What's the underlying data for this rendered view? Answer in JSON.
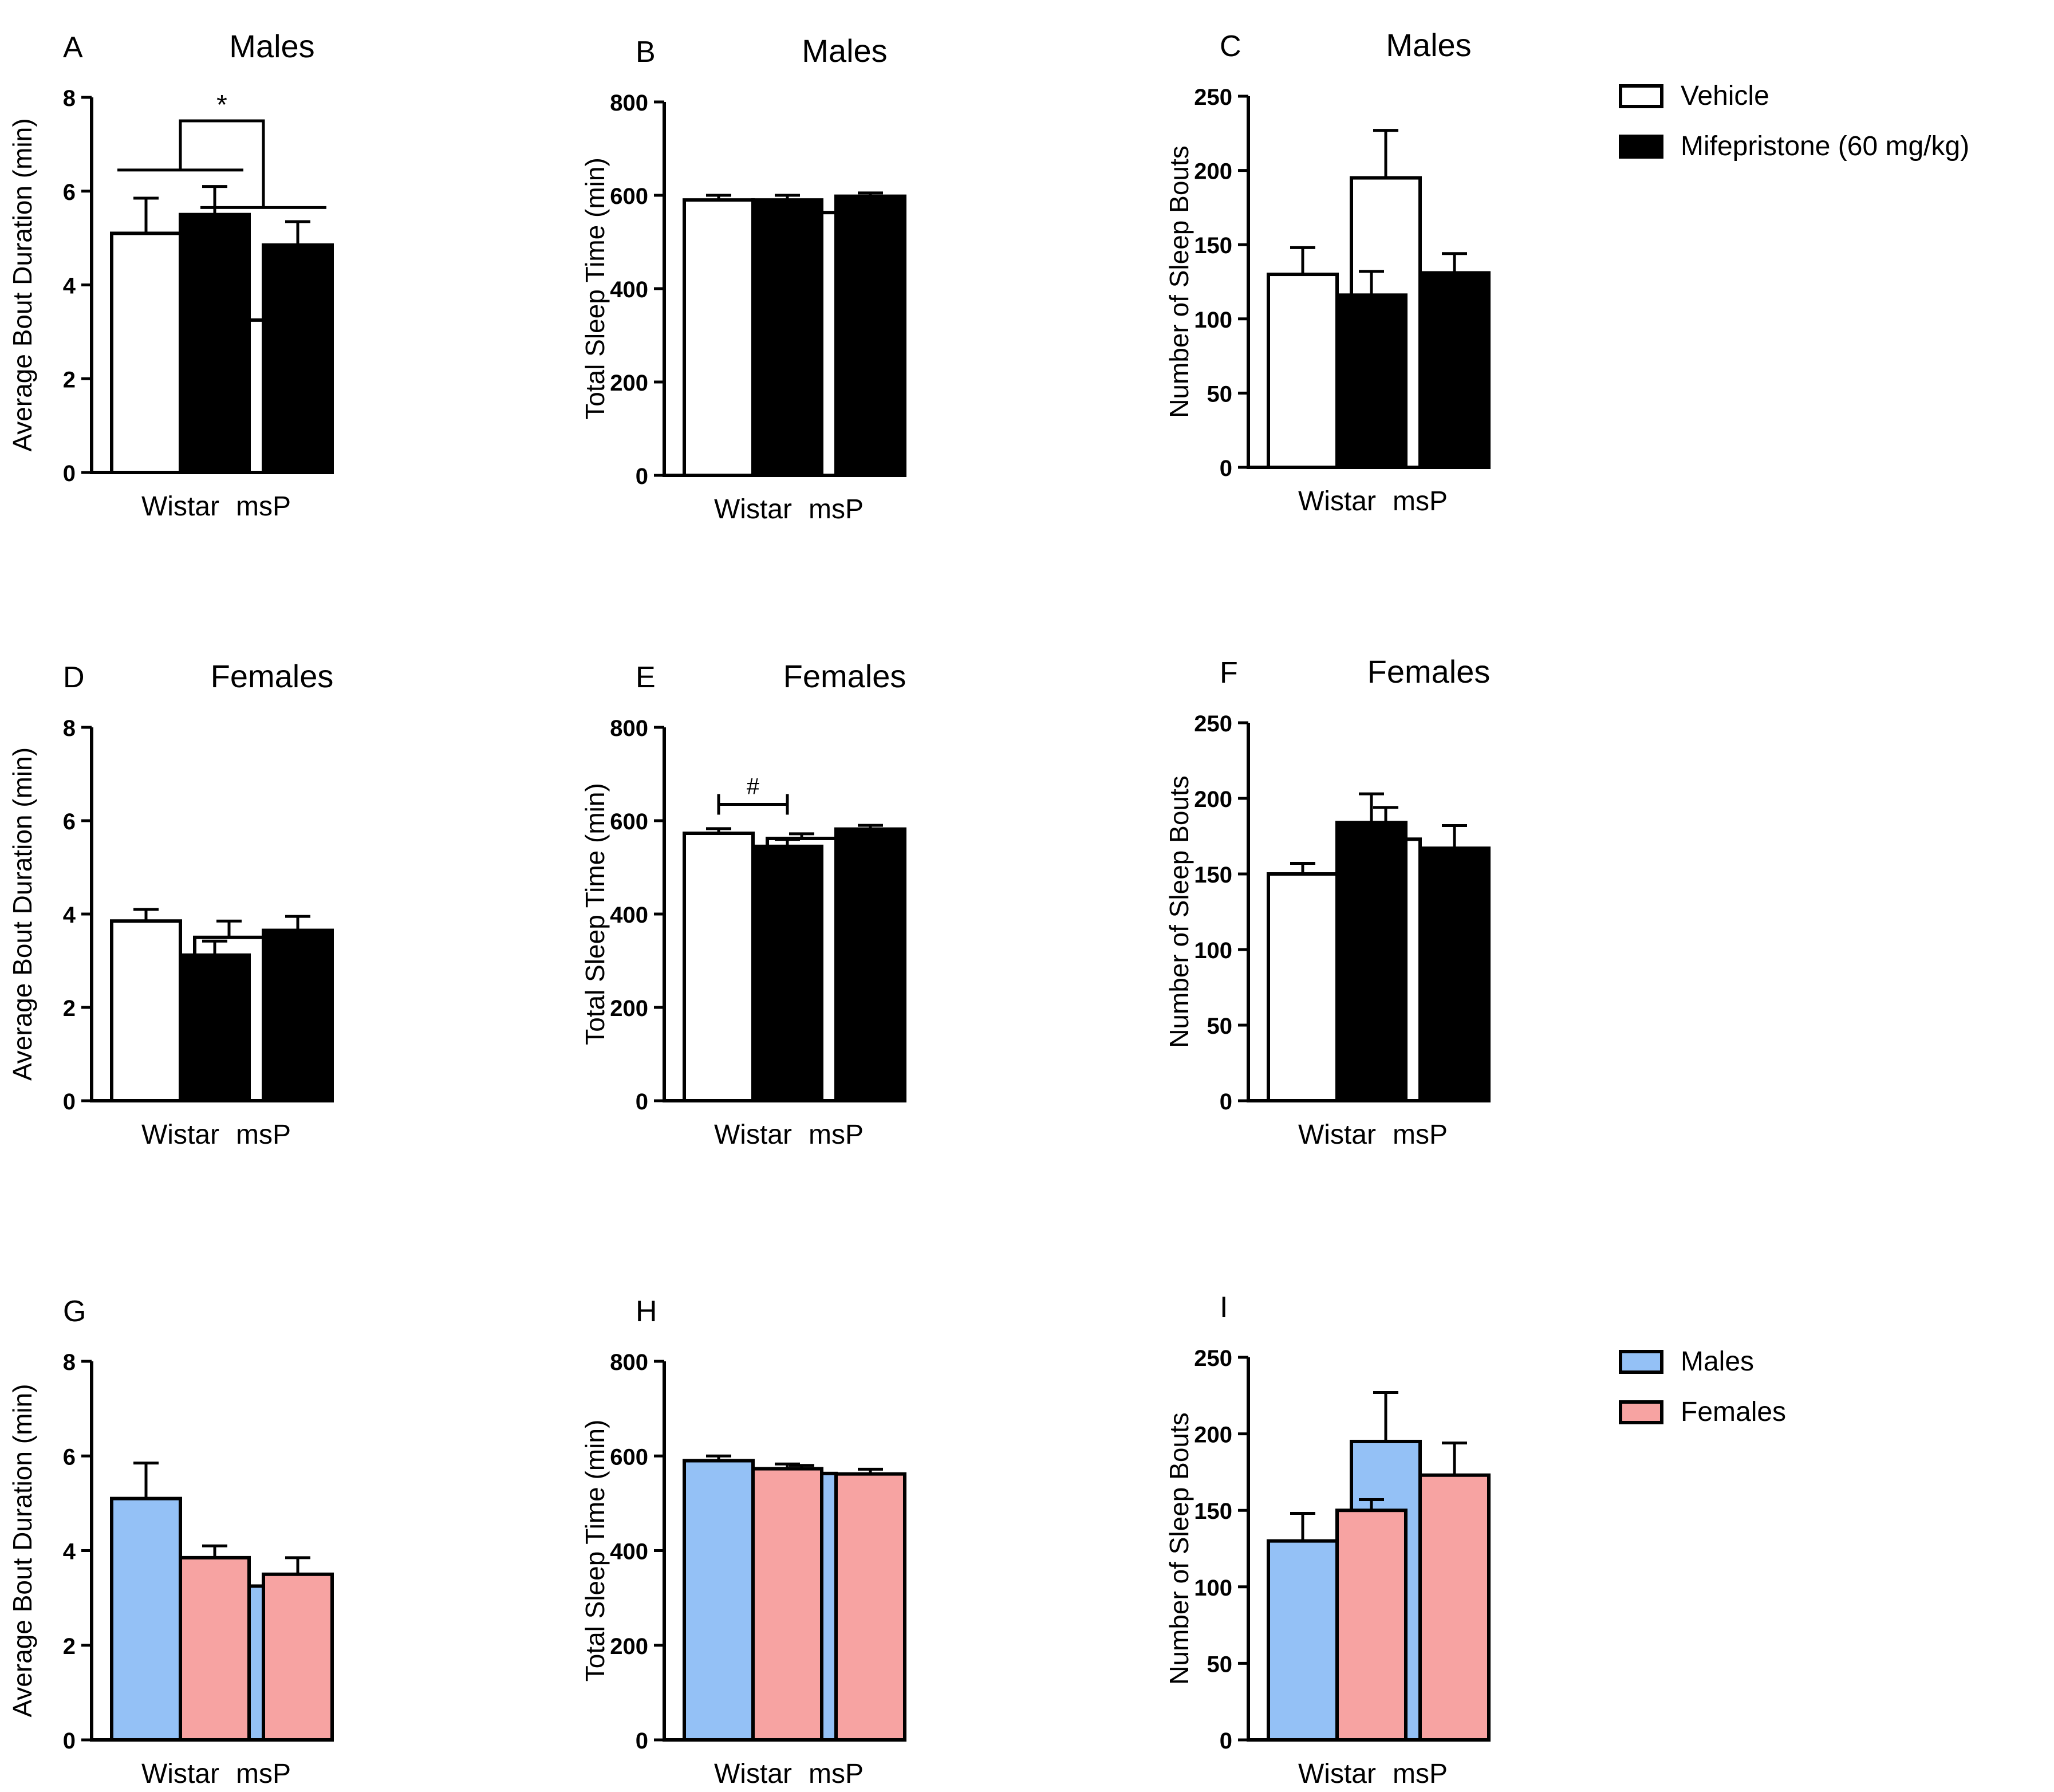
{
  "colors": {
    "vehicle": "#ffffff",
    "mifepristone": "#000000",
    "males": "#94c1f6",
    "females": "#f7a3a2",
    "stroke": "#000000"
  },
  "legends": [
    {
      "items": [
        {
          "label": "Vehicle",
          "color": "#ffffff"
        },
        {
          "label": "Mifepristone (60 mg/kg)",
          "color": "#000000"
        }
      ]
    },
    {
      "items": [
        {
          "label": "Males",
          "color": "#94c1f6"
        },
        {
          "label": "Females",
          "color": "#f7a3a2"
        }
      ]
    }
  ],
  "chart_data": [
    {
      "letter": "A",
      "title": "Males",
      "type": "bar",
      "ylabel": "Average Bout Duration (min)",
      "ylim": [
        0,
        8
      ],
      "yticks": [
        0,
        2,
        4,
        6,
        8
      ],
      "categories": [
        "Wistar",
        "msP"
      ],
      "series": [
        {
          "name": "Vehicle",
          "color": "#ffffff",
          "values": [
            5.1,
            3.25
          ],
          "errors": [
            0.75,
            0.45
          ]
        },
        {
          "name": "Mifepristone (60 mg/kg)",
          "color": "#000000",
          "values": [
            5.5,
            4.85
          ],
          "errors": [
            0.6,
            0.5
          ]
        }
      ],
      "annotations": [
        {
          "type": "group-comparison",
          "label": "*",
          "between": [
            "Wistar",
            "msP"
          ]
        }
      ]
    },
    {
      "letter": "B",
      "title": "Males",
      "type": "bar",
      "ylabel": "Total Sleep Time (min)",
      "ylim": [
        0,
        800
      ],
      "yticks": [
        0,
        200,
        400,
        600,
        800
      ],
      "categories": [
        "Wistar",
        "msP"
      ],
      "series": [
        {
          "name": "Vehicle",
          "color": "#ffffff",
          "values": [
            590,
            563
          ],
          "errors": [
            10,
            17
          ]
        },
        {
          "name": "Mifepristone (60 mg/kg)",
          "color": "#000000",
          "values": [
            590,
            598
          ],
          "errors": [
            10,
            7
          ]
        }
      ]
    },
    {
      "letter": "C",
      "title": "Males",
      "type": "bar",
      "ylabel": "Number of Sleep Bouts",
      "ylim": [
        0,
        250
      ],
      "yticks": [
        0,
        50,
        100,
        150,
        200,
        250
      ],
      "categories": [
        "Wistar",
        "msP"
      ],
      "series": [
        {
          "name": "Vehicle",
          "color": "#ffffff",
          "values": [
            130,
            195
          ],
          "errors": [
            18,
            32
          ]
        },
        {
          "name": "Mifepristone (60 mg/kg)",
          "color": "#000000",
          "values": [
            116,
            131
          ],
          "errors": [
            16,
            13
          ]
        }
      ]
    },
    {
      "letter": "D",
      "title": "Females",
      "type": "bar",
      "ylabel": "Average Bout Duration (min)",
      "ylim": [
        0,
        8
      ],
      "yticks": [
        0,
        2,
        4,
        6,
        8
      ],
      "categories": [
        "Wistar",
        "msP"
      ],
      "series": [
        {
          "name": "Vehicle",
          "color": "#ffffff",
          "values": [
            3.85,
            3.5
          ],
          "errors": [
            0.25,
            0.35
          ]
        },
        {
          "name": "Mifepristone (60 mg/kg)",
          "color": "#000000",
          "values": [
            3.12,
            3.65
          ],
          "errors": [
            0.3,
            0.3
          ]
        }
      ]
    },
    {
      "letter": "E",
      "title": "Females",
      "type": "bar",
      "ylabel": "Total Sleep Time (min)",
      "ylim": [
        0,
        800
      ],
      "yticks": [
        0,
        200,
        400,
        600,
        800
      ],
      "categories": [
        "Wistar",
        "msP"
      ],
      "series": [
        {
          "name": "Vehicle",
          "color": "#ffffff",
          "values": [
            573,
            562
          ],
          "errors": [
            10,
            10
          ]
        },
        {
          "name": "Mifepristone (60 mg/kg)",
          "color": "#000000",
          "values": [
            545,
            582
          ],
          "errors": [
            15,
            8
          ]
        }
      ],
      "annotations": [
        {
          "type": "within-group",
          "label": "#",
          "group": "Wistar"
        }
      ]
    },
    {
      "letter": "F",
      "title": "Females",
      "type": "bar",
      "ylabel": "Number of Sleep Bouts",
      "ylim": [
        0,
        250
      ],
      "yticks": [
        0,
        50,
        100,
        150,
        200,
        250
      ],
      "categories": [
        "Wistar",
        "msP"
      ],
      "series": [
        {
          "name": "Vehicle",
          "color": "#ffffff",
          "values": [
            150,
            173
          ],
          "errors": [
            7,
            21
          ]
        },
        {
          "name": "Mifepristone (60 mg/kg)",
          "color": "#000000",
          "values": [
            184,
            167
          ],
          "errors": [
            19,
            15
          ]
        }
      ]
    },
    {
      "letter": "G",
      "title": "",
      "type": "bar",
      "ylabel": "Average Bout Duration (min)",
      "ylim": [
        0,
        8
      ],
      "yticks": [
        0,
        2,
        4,
        6,
        8
      ],
      "categories": [
        "Wistar",
        "msP"
      ],
      "series": [
        {
          "name": "Males",
          "color": "#94c1f6",
          "values": [
            5.1,
            3.25
          ],
          "errors": [
            0.75,
            0.45
          ]
        },
        {
          "name": "Females",
          "color": "#f7a3a2",
          "values": [
            3.85,
            3.5
          ],
          "errors": [
            0.25,
            0.35
          ]
        }
      ]
    },
    {
      "letter": "H",
      "title": "",
      "type": "bar",
      "ylabel": "Total Sleep Time (min)",
      "ylim": [
        0,
        800
      ],
      "yticks": [
        0,
        200,
        400,
        600,
        800
      ],
      "categories": [
        "Wistar",
        "msP"
      ],
      "series": [
        {
          "name": "Males",
          "color": "#94c1f6",
          "values": [
            590,
            563
          ],
          "errors": [
            10,
            17
          ]
        },
        {
          "name": "Females",
          "color": "#f7a3a2",
          "values": [
            573,
            562
          ],
          "errors": [
            10,
            10
          ]
        }
      ]
    },
    {
      "letter": "I",
      "title": "",
      "type": "bar",
      "ylabel": "Number of Sleep Bouts",
      "ylim": [
        0,
        250
      ],
      "yticks": [
        0,
        50,
        100,
        150,
        200,
        250
      ],
      "categories": [
        "Wistar",
        "msP"
      ],
      "series": [
        {
          "name": "Males",
          "color": "#94c1f6",
          "values": [
            130,
            195
          ],
          "errors": [
            18,
            32
          ]
        },
        {
          "name": "Females",
          "color": "#f7a3a2",
          "values": [
            150,
            173
          ],
          "errors": [
            7,
            21
          ]
        }
      ]
    }
  ]
}
